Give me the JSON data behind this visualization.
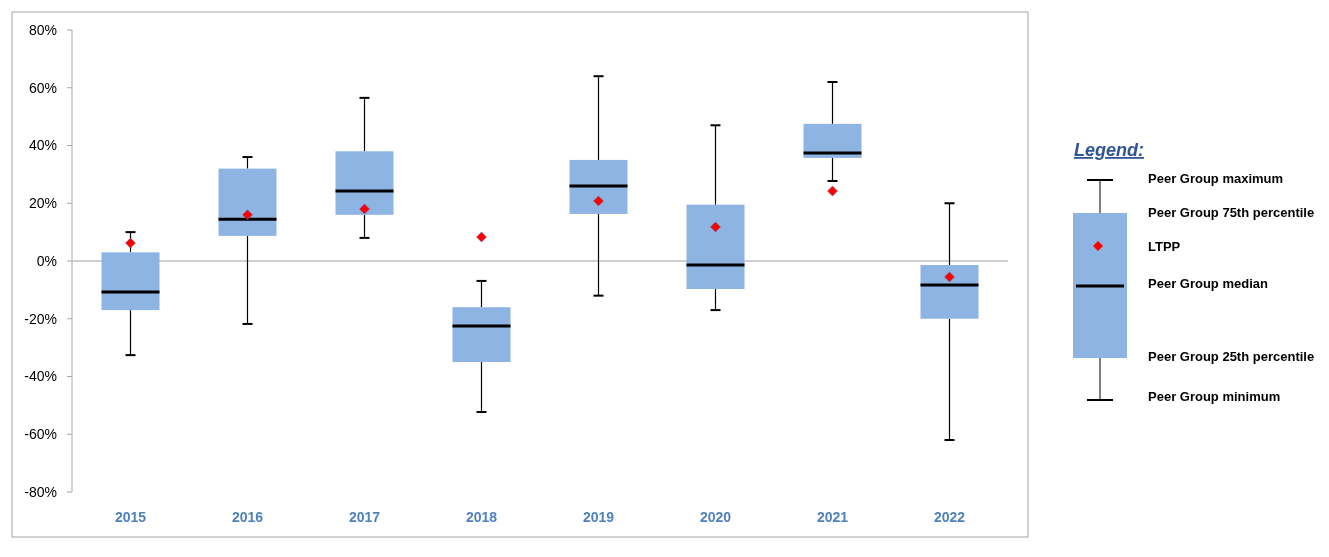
{
  "chart_data": {
    "type": "box",
    "categories": [
      "2015",
      "2016",
      "2017",
      "2018",
      "2019",
      "2020",
      "2021",
      "2022"
    ],
    "ylim": [
      -80,
      80
    ],
    "yticks": [
      {
        "value": -80,
        "label": "-80%"
      },
      {
        "value": -60,
        "label": "-60%"
      },
      {
        "value": -40,
        "label": "-40%"
      },
      {
        "value": -20,
        "label": "-20%"
      },
      {
        "value": 0,
        "label": "0%"
      },
      {
        "value": 20,
        "label": "20%"
      },
      {
        "value": 40,
        "label": "40%"
      },
      {
        "value": 60,
        "label": "60%"
      },
      {
        "value": 80,
        "label": "80%"
      }
    ],
    "legend": "right",
    "legend_title": "Legend:",
    "grid": false,
    "ref_lines": [
      {
        "axis": "y",
        "value": 0,
        "color": "#bfbfbf"
      }
    ],
    "series": [
      {
        "color": "#8eb4e3",
        "boxes": [
          {
            "low": -32.6,
            "q1": -17,
            "median": -10.7,
            "q3": 3,
            "high": 10
          },
          {
            "low": -21.8,
            "q1": 8.7,
            "median": 14.5,
            "q3": 32,
            "high": 36
          },
          {
            "low": 8,
            "q1": 16,
            "median": 24.2,
            "q3": 38,
            "high": 56.5
          },
          {
            "low": -52.3,
            "q1": -35,
            "median": -22.5,
            "q3": -16,
            "high": -6.9
          },
          {
            "low": -12,
            "q1": 16.3,
            "median": 26,
            "q3": 35,
            "high": 64
          },
          {
            "low": -17,
            "q1": -9.7,
            "median": -1.4,
            "q3": 19.5,
            "high": 47
          },
          {
            "low": 27.7,
            "q1": 35.7,
            "median": 37.4,
            "q3": 47.5,
            "high": 62
          },
          {
            "low": -62,
            "q1": -20,
            "median": -8.3,
            "q3": -1.4,
            "high": 20
          }
        ]
      },
      {
        "type": "scatter",
        "name": "LTPP",
        "color": "#ff0000",
        "marker": "diamond",
        "values": [
          6.2,
          16,
          18,
          8.3,
          20.8,
          11.8,
          24.2,
          -5.5
        ]
      }
    ],
    "annotations": [
      "Peer Group maximum",
      "Peer Group 75th percentile",
      "Peer Group median",
      "Peer Group 25th percentile",
      "Peer Group minimum"
    ]
  }
}
